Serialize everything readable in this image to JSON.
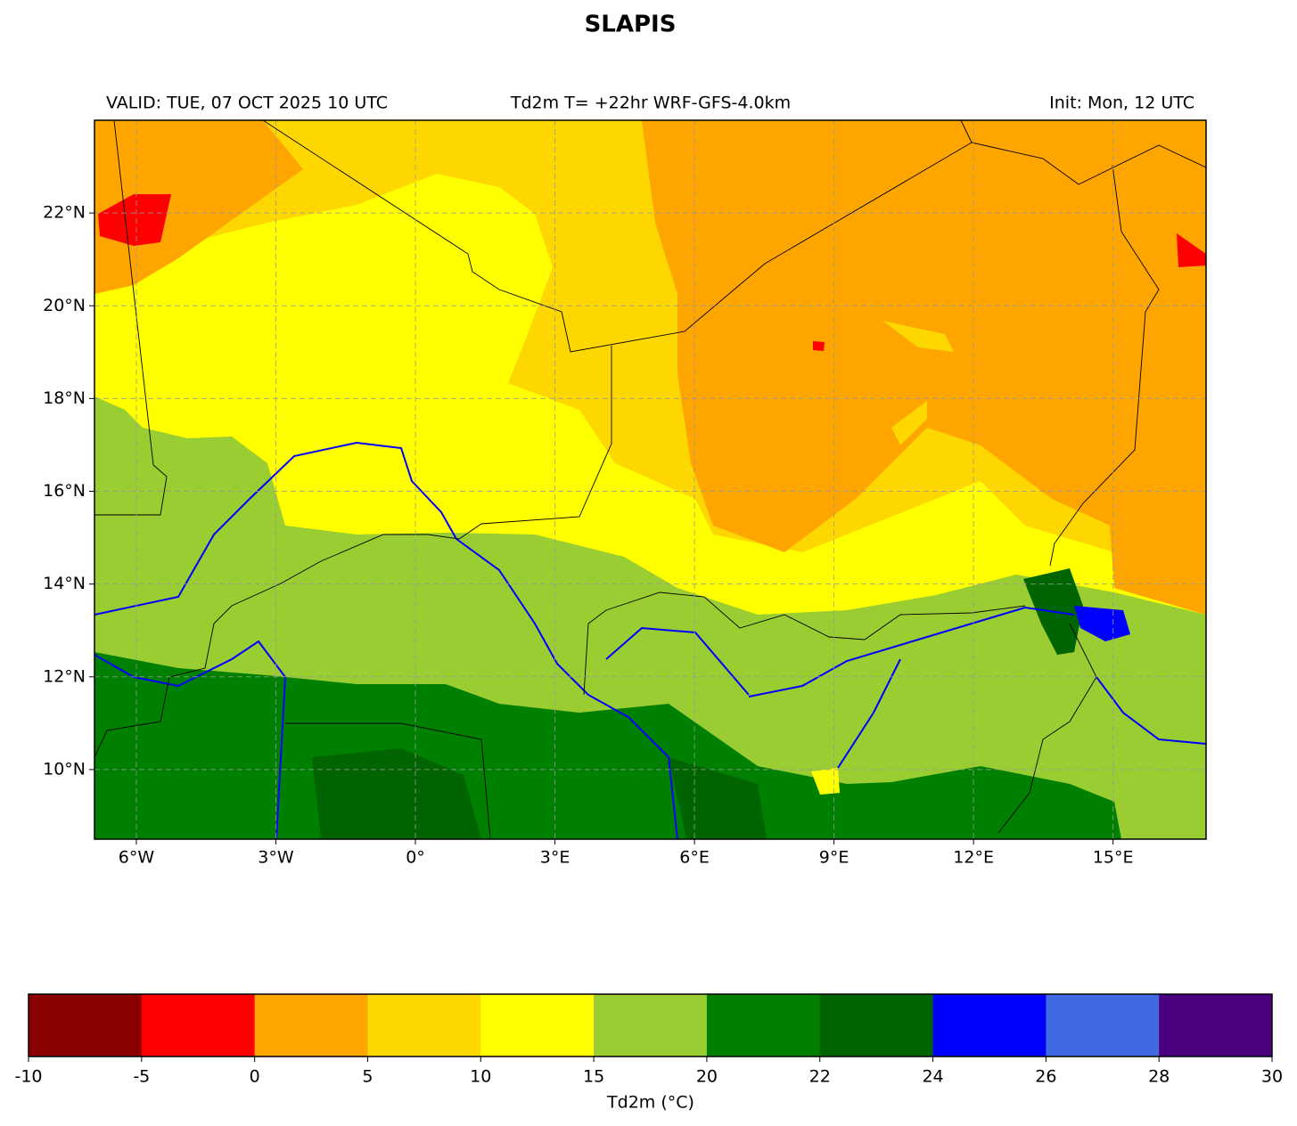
{
  "title": "SLAPIS",
  "header": {
    "left": "VALID: TUE, 07 OCT 2025 10 UTC",
    "center": "Td2m T= +22hr WRF-GFS-4.0km",
    "right": "Init: Mon, 12 UTC"
  },
  "map": {
    "xlim": [
      -6.9,
      17
    ],
    "ylim": [
      8.5,
      24
    ],
    "grid": true,
    "lon_ticks": [
      {
        "value": -6,
        "label": "6°W"
      },
      {
        "value": -3,
        "label": "3°W"
      },
      {
        "value": 0,
        "label": "0°"
      },
      {
        "value": 3,
        "label": "3°E"
      },
      {
        "value": 6,
        "label": "6°E"
      },
      {
        "value": 9,
        "label": "9°E"
      },
      {
        "value": 12,
        "label": "12°E"
      },
      {
        "value": 15,
        "label": "15°E"
      }
    ],
    "lat_ticks": [
      {
        "value": 10,
        "label": "10°N"
      },
      {
        "value": 12,
        "label": "12°N"
      },
      {
        "value": 14,
        "label": "14°N"
      },
      {
        "value": 16,
        "label": "16°N"
      },
      {
        "value": 18,
        "label": "18°N"
      },
      {
        "value": 20,
        "label": "20°N"
      },
      {
        "value": 22,
        "label": "22°N"
      }
    ]
  },
  "colorbar": {
    "label": "Td2m (°C)",
    "bounds": [
      -10,
      -5,
      0,
      5,
      10,
      15,
      20,
      22,
      24,
      26,
      28,
      30
    ],
    "colors": [
      "#8b0000",
      "#ff0000",
      "#ffa500",
      "#ffd700",
      "#ffff00",
      "#9acd32",
      "#008000",
      "#006400",
      "#0000ff",
      "#4169e1",
      "#4b0082"
    ]
  }
}
